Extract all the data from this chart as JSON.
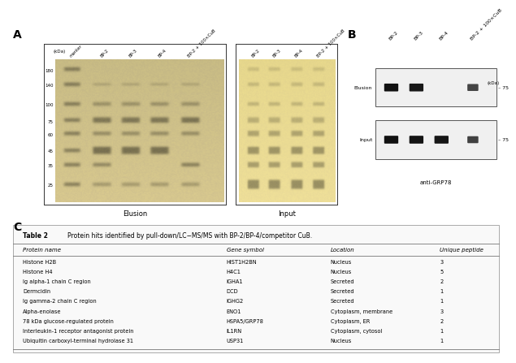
{
  "fig_width": 6.23,
  "fig_height": 4.12,
  "bg_color": "#ffffff",
  "panel_A_label": "A",
  "panel_B_label": "B",
  "panel_C_label": "C",
  "elusion_caption": "Elusion",
  "input_caption": "Input",
  "panel_A_col_labels": [
    "marker",
    "BP-2",
    "BP-3",
    "BP-4",
    "BP-2 + 100×CuB"
  ],
  "panel_A_input_col_labels": [
    "BP-2",
    "BP-3",
    "BP-4",
    "BP-2 + 100×CuB"
  ],
  "panel_A_kda_label": "(kDa)",
  "panel_A_marker_vals": [
    180,
    140,
    100,
    75,
    60,
    45,
    35,
    25
  ],
  "panel_B_col_labels": [
    "BP-2",
    "BP-3",
    "BP-4",
    "BP-2 + 100×CuB"
  ],
  "panel_B_kda_label": "(kDa)",
  "panel_B_row1_label": "Elusion",
  "panel_B_row2_label": "Input",
  "panel_B_marker": "75",
  "anti_label": "anti-GRP78",
  "table_title": "Table 2",
  "table_caption": "Protein hits identified by pull-down/LC−MS/MS with BP-2/BP-4/competitor CuB.",
  "table_headers": [
    "Protein name",
    "Gene symbol",
    "Location",
    "Unique peptide"
  ],
  "table_rows": [
    [
      "Histone H2B",
      "HIST1H2BN",
      "Nucleus",
      "3"
    ],
    [
      "Histone H4",
      "H4C1",
      "Nucleus",
      "5"
    ],
    [
      "Ig alpha-1 chain C region",
      "IGHA1",
      "Secreted",
      "2"
    ],
    [
      "Dermcidin",
      "DCD",
      "Secreted",
      "1"
    ],
    [
      "Ig gamma-2 chain C region",
      "IGHG2",
      "Secreted",
      "1"
    ],
    [
      "Alpha-enolase",
      "ENO1",
      "Cytoplasm, membrane",
      "3"
    ],
    [
      "78 kDa glucose-regulated protein",
      "HSPA5/GRP78",
      "Cytoplasm, ER",
      "2"
    ],
    [
      "Interleukin-1 receptor antagonist protein",
      "IL1RN",
      "Cytoplasm, cytosol",
      "1"
    ],
    [
      "Ubiquitin carboxyl-terminal hydrolase 31",
      "USP31",
      "Nucleus",
      "1"
    ]
  ]
}
